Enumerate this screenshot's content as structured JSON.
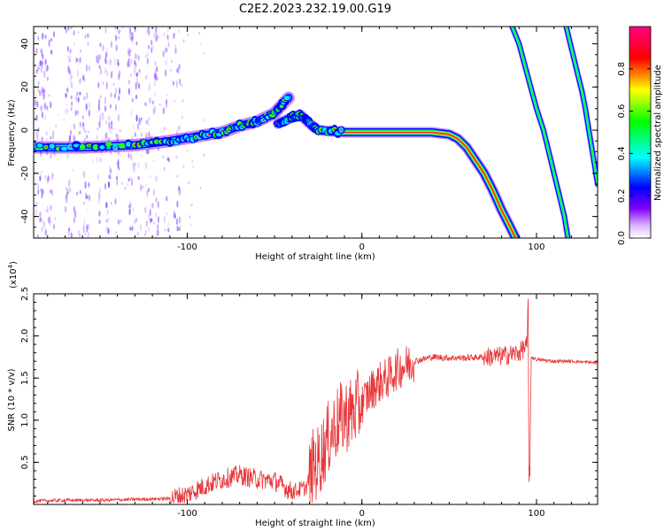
{
  "title": "C2E2.2023.232.19.00.G19",
  "chart_data": [
    {
      "type": "heatmap",
      "xlabel": "Height of straight line (km)",
      "ylabel": "Frequency (Hz)",
      "xlim": [
        -188,
        135
      ],
      "ylim": [
        -50,
        48
      ],
      "x_ticks": [
        -100,
        0,
        100
      ],
      "y_ticks": [
        -40,
        -20,
        0,
        20,
        40
      ],
      "colorbar": {
        "label": "Normalized spectral amplitude",
        "range": [
          0,
          1
        ],
        "ticks": [
          0.0,
          0.2,
          0.4,
          0.6,
          0.8
        ],
        "colors": [
          "#ffffff",
          "#8000ff",
          "#0000ff",
          "#00ffff",
          "#00ff00",
          "#ffff00",
          "#ff0000",
          "#ff0080"
        ]
      },
      "features": [
        {
          "name": "",
          "points": [
            [
              -188,
              -8
            ],
            [
              -160,
              -8
            ],
            [
              -130,
              -7
            ],
            [
              -110,
              -5
            ],
            [
              -95,
              -3
            ],
            [
              -80,
              -1
            ],
            [
              -70,
              2
            ],
            [
              -60,
              4
            ],
            [
              -50,
              8
            ],
            [
              -42,
              15
            ]
          ]
        },
        {
          "name": "",
          "points": [
            [
              -48,
              3
            ],
            [
              -40,
              6
            ],
            [
              -35,
              7
            ],
            [
              -30,
              3
            ],
            [
              -25,
              0
            ],
            [
              -10,
              -1
            ],
            [
              0,
              -1
            ],
            [
              20,
              -1
            ],
            [
              40,
              -1
            ],
            [
              50,
              -2
            ],
            [
              55,
              -4
            ],
            [
              60,
              -8
            ],
            [
              65,
              -14
            ],
            [
              70,
              -20
            ],
            [
              75,
              -28
            ],
            [
              80,
              -37
            ],
            [
              85,
              -45
            ],
            [
              88,
              -50
            ]
          ]
        },
        {
          "name": "",
          "points": [
            [
              86,
              48
            ],
            [
              90,
              40
            ],
            [
              95,
              25
            ],
            [
              100,
              10
            ],
            [
              104,
              0
            ],
            [
              107,
              -10
            ],
            [
              110,
              -20
            ],
            [
              113,
              -30
            ],
            [
              116,
              -40
            ],
            [
              118,
              -50
            ]
          ]
        },
        {
          "name": "",
          "points": [
            [
              117,
              48
            ],
            [
              120,
              38
            ],
            [
              123,
              28
            ],
            [
              126,
              18
            ],
            [
              128,
              10
            ],
            [
              130,
              0
            ],
            [
              131,
              -5
            ],
            [
              133,
              -15
            ],
            [
              135,
              -25
            ]
          ]
        }
      ]
    },
    {
      "type": "line",
      "xlabel": "Height of straight line (km)",
      "ylabel": "SNR (10 * v/v)",
      "y_multiplier": "(x10^4)",
      "xlim": [
        -188,
        135
      ],
      "ylim": [
        0,
        2.5
      ],
      "x_ticks": [
        -100,
        0,
        100
      ],
      "y_ticks": [
        0.5,
        1.0,
        1.5,
        2.0,
        2.5
      ],
      "y_tick_labels": [
        "0.5",
        "1.0",
        "1.5",
        "2.0",
        "2.5"
      ],
      "color": "#e8373a",
      "series": [
        {
          "x": [
            -188,
            -170,
            -150,
            -130,
            -110,
            -100,
            -90,
            -80,
            -70,
            -60,
            -50,
            -40,
            -32,
            -28,
            -25,
            -20,
            -15,
            -10,
            -5,
            0,
            5,
            10,
            15,
            20,
            25,
            30,
            40,
            50,
            60,
            70,
            80,
            90,
            95,
            96,
            97,
            100,
            110,
            120,
            135
          ],
          "y": [
            0.04,
            0.05,
            0.05,
            0.06,
            0.07,
            0.12,
            0.22,
            0.3,
            0.35,
            0.3,
            0.28,
            0.15,
            0.2,
            0.45,
            0.5,
            0.75,
            0.95,
            1.05,
            1.1,
            1.2,
            1.35,
            1.45,
            1.5,
            1.6,
            1.65,
            1.7,
            1.75,
            1.74,
            1.74,
            1.75,
            1.76,
            1.8,
            1.9,
            0.2,
            1.75,
            1.72,
            1.7,
            1.7,
            1.68
          ]
        }
      ]
    }
  ]
}
